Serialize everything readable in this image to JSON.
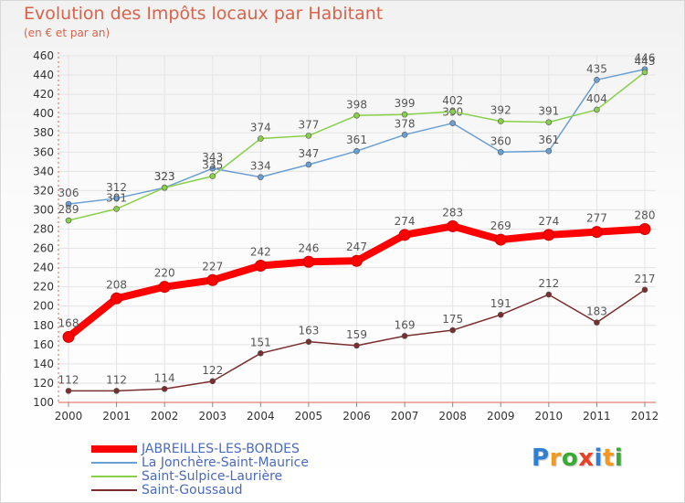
{
  "header": {
    "title": "Evolution des Impôts locaux par Habitant",
    "subtitle": "(en € et par an)"
  },
  "logo": {
    "text": "Proxiti",
    "letters": [
      "P",
      "r",
      "o",
      "x",
      "i",
      "t",
      "i"
    ]
  },
  "colors": {
    "title": "#d9634a",
    "axis": "#d9634a",
    "grid": "#e4e4e4",
    "label": "#555555",
    "legend_text": "#4a6ac0",
    "logo": [
      "#2f7fd3",
      "#f29a1f",
      "#3aaa35",
      "#e8402a",
      "#2f7fd3",
      "#f29a1f",
      "#3aaa35"
    ]
  },
  "chart_data": {
    "type": "line",
    "title": "Evolution des Impôts locaux par Habitant",
    "subtitle": "(en € et par an)",
    "xlabel": "",
    "ylabel": "",
    "x": [
      "2000",
      "2001",
      "2002",
      "2003",
      "2004",
      "2005",
      "2006",
      "2007",
      "2008",
      "2009",
      "2010",
      "2011",
      "2012"
    ],
    "ylim": [
      100,
      460
    ],
    "yticks": [
      100,
      120,
      140,
      160,
      180,
      200,
      220,
      240,
      260,
      280,
      300,
      320,
      340,
      360,
      380,
      400,
      420,
      440,
      460
    ],
    "grid": true,
    "legend_position": "bottom-left",
    "series": [
      {
        "name": "JABREILLES-LES-BORDES",
        "color": "#ff0000",
        "width": 8,
        "marker": 6,
        "values": [
          168,
          208,
          220,
          227,
          242,
          246,
          247,
          274,
          283,
          269,
          274,
          277,
          280
        ]
      },
      {
        "name": "La Jonchère-Saint-Maurice",
        "color": "#6a9fd4",
        "width": 1.5,
        "marker": 3,
        "values": [
          306,
          312,
          323,
          343,
          334,
          347,
          361,
          378,
          390,
          360,
          361,
          435,
          446
        ]
      },
      {
        "name": "Saint-Sulpice-Laurière",
        "color": "#88d04a",
        "width": 1.5,
        "marker": 3,
        "values": [
          289,
          301,
          323,
          335,
          374,
          377,
          398,
          399,
          402,
          392,
          391,
          404,
          443
        ]
      },
      {
        "name": "Saint-Goussaud",
        "color": "#7a2e2e",
        "width": 1.5,
        "marker": 3,
        "values": [
          112,
          112,
          114,
          122,
          151,
          163,
          159,
          169,
          175,
          191,
          212,
          183,
          217
        ]
      }
    ]
  }
}
